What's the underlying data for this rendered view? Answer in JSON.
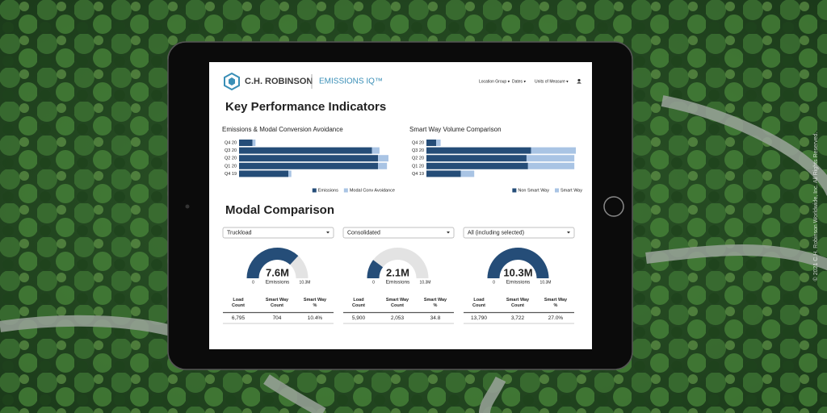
{
  "copyright": "© 2021 C.H. Robinson Worldwide, Inc. All Rights Reserved.",
  "header": {
    "brand": "C.H. ROBINSON",
    "product": "EMISSIONS IQ™",
    "nav": [
      "Location Group ▾",
      "Dates ▾",
      "Units of Measure ▾"
    ]
  },
  "kpi": {
    "title": "Key Performance Indicators",
    "charts": [
      {
        "type": "bar",
        "title": "Emissions & Modal Conversion Avoidance",
        "categories": [
          "Q4 20",
          "Q3 20",
          "Q2 20",
          "Q1 20",
          "Q4 19"
        ],
        "xlim": [
          0,
          100
        ],
        "series": [
          {
            "name": "Emissions",
            "color": "#254d78",
            "values": [
              9,
              89,
              93,
              93,
              33
            ]
          },
          {
            "name": "Modal Conv Avoidance",
            "color": "#a9c4e4",
            "values": [
              2,
              5,
              7,
              6,
              2
            ]
          }
        ]
      },
      {
        "type": "bar",
        "title": "Smart Way Volume Comparison",
        "categories": [
          "Q4 20",
          "Q3 20",
          "Q2 20",
          "Q1 20",
          "Q4 19"
        ],
        "xlim": [
          0,
          100
        ],
        "series": [
          {
            "name": "Non Smart Way",
            "color": "#254d78",
            "values": [
              6.5,
              70,
              67,
              68,
              23
            ]
          },
          {
            "name": "Smart Way",
            "color": "#a9c4e4",
            "values": [
              3,
              30,
              32,
              31,
              9
            ]
          }
        ]
      }
    ]
  },
  "modal": {
    "title": "Modal Comparison",
    "table_headers": [
      "Load Count",
      "Smart Way Count",
      "Smart Way %"
    ],
    "panels": [
      {
        "dropdown": "Truckload",
        "gauge": {
          "value": 7.6,
          "value_label": "7.6M",
          "caption": "Emissions",
          "min": 0,
          "max": 10.3,
          "max_label": "10.3M"
        },
        "row": [
          "6,795",
          "704",
          "10.4%"
        ]
      },
      {
        "dropdown": "Consolidated",
        "gauge": {
          "value": 2.1,
          "value_label": "2.1M",
          "caption": "Emissions",
          "min": 0,
          "max": 10.3,
          "max_label": "10.3M"
        },
        "row": [
          "5,900",
          "2,053",
          "34.8"
        ]
      },
      {
        "dropdown": "All (including selected)",
        "gauge": {
          "value": 10.3,
          "value_label": "10.3M",
          "caption": "Emissions",
          "min": 0,
          "max": 10.3,
          "max_label": "10.3M"
        },
        "row": [
          "13,790",
          "3,722",
          "27.0%"
        ]
      }
    ]
  }
}
